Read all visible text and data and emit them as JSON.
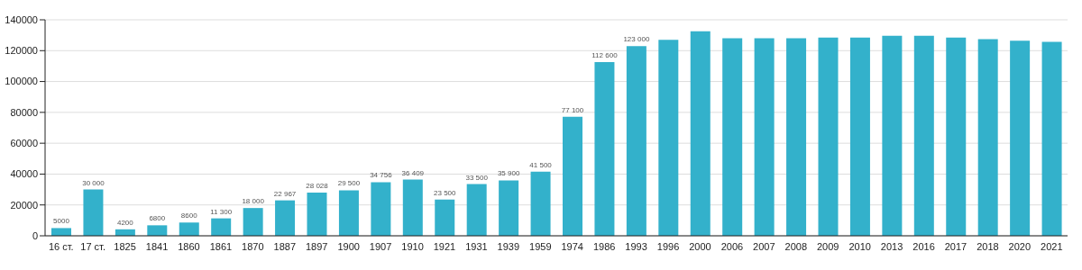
{
  "chart_data": {
    "type": "bar",
    "categories": [
      "16 ст.",
      "17 ст.",
      "1825",
      "1841",
      "1860",
      "1861",
      "1870",
      "1887",
      "1897",
      "1900",
      "1907",
      "1910",
      "1921",
      "1931",
      "1939",
      "1959",
      "1974",
      "1986",
      "1993",
      "1996",
      "2000",
      "2006",
      "2007",
      "2008",
      "2009",
      "2010",
      "2013",
      "2016",
      "2017",
      "2018",
      "2020",
      "2021"
    ],
    "values": [
      5000,
      30000,
      4200,
      6800,
      8600,
      11300,
      18000,
      22967,
      28028,
      29500,
      34756,
      36409,
      23500,
      33500,
      35900,
      41500,
      77100,
      112600,
      123000,
      127000,
      132500,
      128000,
      128000,
      128000,
      128500,
      128500,
      129700,
      129700,
      128500,
      127500,
      126400,
      125700
    ],
    "value_labels": [
      "5000",
      "30 000",
      "4200",
      "6800",
      "8600",
      "11 300",
      "18 000",
      "22 967",
      "28 028",
      "29 500",
      "34 756",
      "36 409",
      "23 500",
      "33 500",
      "35 900",
      "41 500",
      "77 100",
      "112 600",
      "123 000",
      null,
      null,
      null,
      null,
      null,
      null,
      null,
      null,
      null,
      null,
      null,
      null,
      null
    ],
    "color": "#33b1cb",
    "ylim": [
      0,
      140000
    ],
    "yticks": [
      0,
      20000,
      40000,
      60000,
      80000,
      100000,
      120000,
      140000
    ],
    "grid": "y",
    "legend": false
  }
}
